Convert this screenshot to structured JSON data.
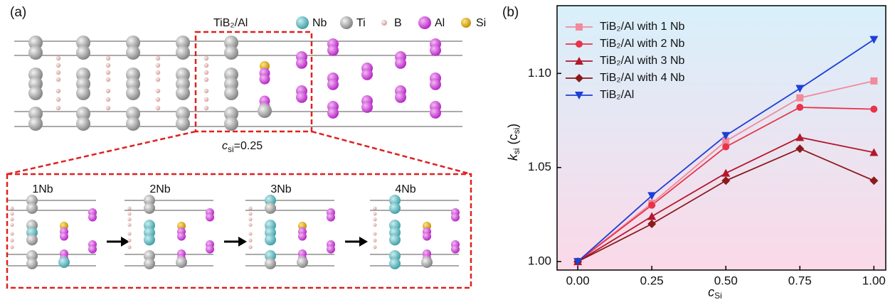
{
  "figure": {
    "panel_a": "(a)",
    "panel_b": "(b)",
    "legend_title": "TiB₂/Al",
    "atoms": [
      "Nb",
      "Ti",
      "B",
      "Al",
      "Si"
    ],
    "c_si_label": [
      "c",
      "si",
      "=0.25"
    ],
    "stages": [
      "1Nb",
      "2Nb",
      "3Nb",
      "4Nb"
    ]
  },
  "chart_data": {
    "type": "line",
    "x_label": [
      "c",
      "Si"
    ],
    "y_label": [
      "k",
      "si",
      " (c",
      "si",
      ")"
    ],
    "x": [
      0,
      0.25,
      0.5,
      0.75,
      1.0
    ],
    "xlim": [
      -0.07,
      1.04
    ],
    "ylim": [
      0.9955,
      1.136
    ],
    "xticks": [
      {
        "value": 0,
        "label": "0.00"
      },
      {
        "value": 0.25,
        "label": "0.25"
      },
      {
        "value": 0.5,
        "label": "0.50"
      },
      {
        "value": 0.75,
        "label": "0.75"
      },
      {
        "value": 1.0,
        "label": "1.00"
      }
    ],
    "yticks": [
      {
        "value": 1.0,
        "label": "1.00"
      },
      {
        "value": 1.05,
        "label": "1.05"
      },
      {
        "value": 1.1,
        "label": "1.10"
      }
    ],
    "legend": "upper left",
    "series": [
      {
        "name": "TiB₂/Al with 1 Nb",
        "color": "#f28a9a",
        "marker": "square",
        "values": [
          1.0,
          1.031,
          1.064,
          1.087,
          1.096
        ]
      },
      {
        "name": "TiB₂/Al with 2 Nb",
        "color": "#e8334a",
        "marker": "circle",
        "values": [
          1.0,
          1.03,
          1.061,
          1.082,
          1.081
        ]
      },
      {
        "name": "TiB₂/Al with 3 Nb",
        "color": "#b3182b",
        "marker": "triangle-up",
        "values": [
          1.0,
          1.024,
          1.047,
          1.066,
          1.058
        ]
      },
      {
        "name": "TiB₂/Al with 4 Nb",
        "color": "#8b1a1a",
        "marker": "diamond",
        "values": [
          1.0,
          1.02,
          1.043,
          1.06,
          1.043
        ]
      },
      {
        "name": "TiB₂/Al",
        "color": "#1f3fd6",
        "marker": "triangle-down",
        "values": [
          1.0,
          1.035,
          1.067,
          1.092,
          1.118
        ]
      }
    ]
  }
}
